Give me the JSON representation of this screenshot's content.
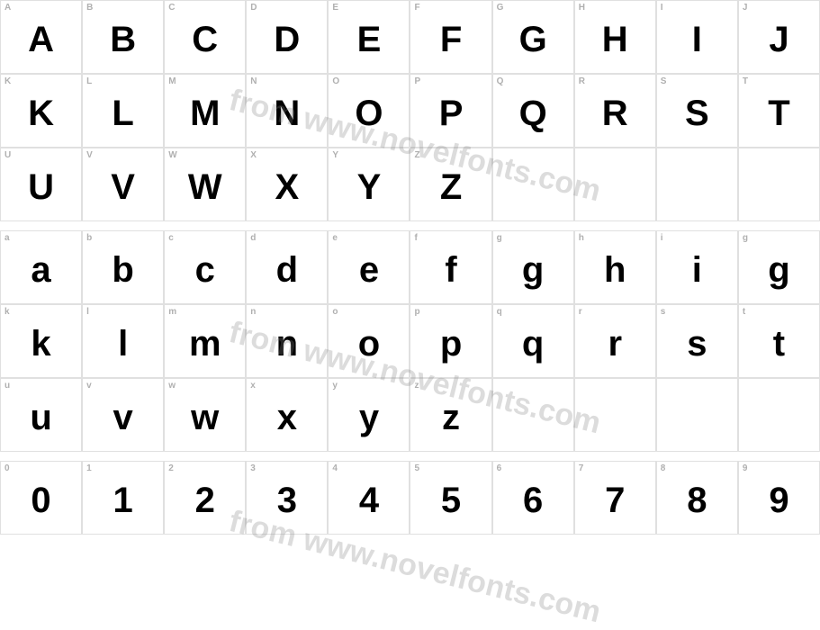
{
  "watermark_text": "from www.novelfonts.com",
  "watermark_color": "rgba(128,128,128,0.28)",
  "grid": {
    "columns": 10,
    "cell_border_color": "#e0e0e0",
    "label_color": "#b0b0b0",
    "glyph_color": "#000000",
    "label_fontsize": 10,
    "glyph_fontsize": 40
  },
  "rows": [
    {
      "labels": [
        "A",
        "B",
        "C",
        "D",
        "E",
        "F",
        "G",
        "H",
        "I",
        "J"
      ],
      "glyphs": [
        "A",
        "B",
        "C",
        "D",
        "E",
        "F",
        "G",
        "H",
        "I",
        "J"
      ]
    },
    {
      "labels": [
        "K",
        "L",
        "M",
        "N",
        "O",
        "P",
        "Q",
        "R",
        "S",
        "T"
      ],
      "glyphs": [
        "K",
        "L",
        "M",
        "N",
        "O",
        "P",
        "Q",
        "R",
        "S",
        "T"
      ]
    },
    {
      "labels": [
        "U",
        "V",
        "W",
        "X",
        "Y",
        "Z",
        "",
        "",
        "",
        ""
      ],
      "glyphs": [
        "U",
        "V",
        "W",
        "X",
        "Y",
        "Z",
        "",
        "",
        "",
        ""
      ]
    },
    {
      "spacer": true
    },
    {
      "labels": [
        "a",
        "b",
        "c",
        "d",
        "e",
        "f",
        "g",
        "h",
        "i",
        "g"
      ],
      "glyphs": [
        "a",
        "b",
        "c",
        "d",
        "e",
        "f",
        "g",
        "h",
        "i",
        "g"
      ]
    },
    {
      "labels": [
        "k",
        "l",
        "m",
        "n",
        "o",
        "p",
        "q",
        "r",
        "s",
        "t"
      ],
      "glyphs": [
        "k",
        "l",
        "m",
        "n",
        "o",
        "p",
        "q",
        "r",
        "s",
        "t"
      ]
    },
    {
      "labels": [
        "u",
        "v",
        "w",
        "x",
        "y",
        "z",
        "",
        "",
        "",
        ""
      ],
      "glyphs": [
        "u",
        "v",
        "w",
        "x",
        "y",
        "z",
        "",
        "",
        "",
        ""
      ]
    },
    {
      "spacer": true
    },
    {
      "labels": [
        "0",
        "1",
        "2",
        "3",
        "4",
        "5",
        "6",
        "7",
        "8",
        "9"
      ],
      "glyphs": [
        "0",
        "1",
        "2",
        "3",
        "4",
        "5",
        "6",
        "7",
        "8",
        "9"
      ]
    }
  ]
}
